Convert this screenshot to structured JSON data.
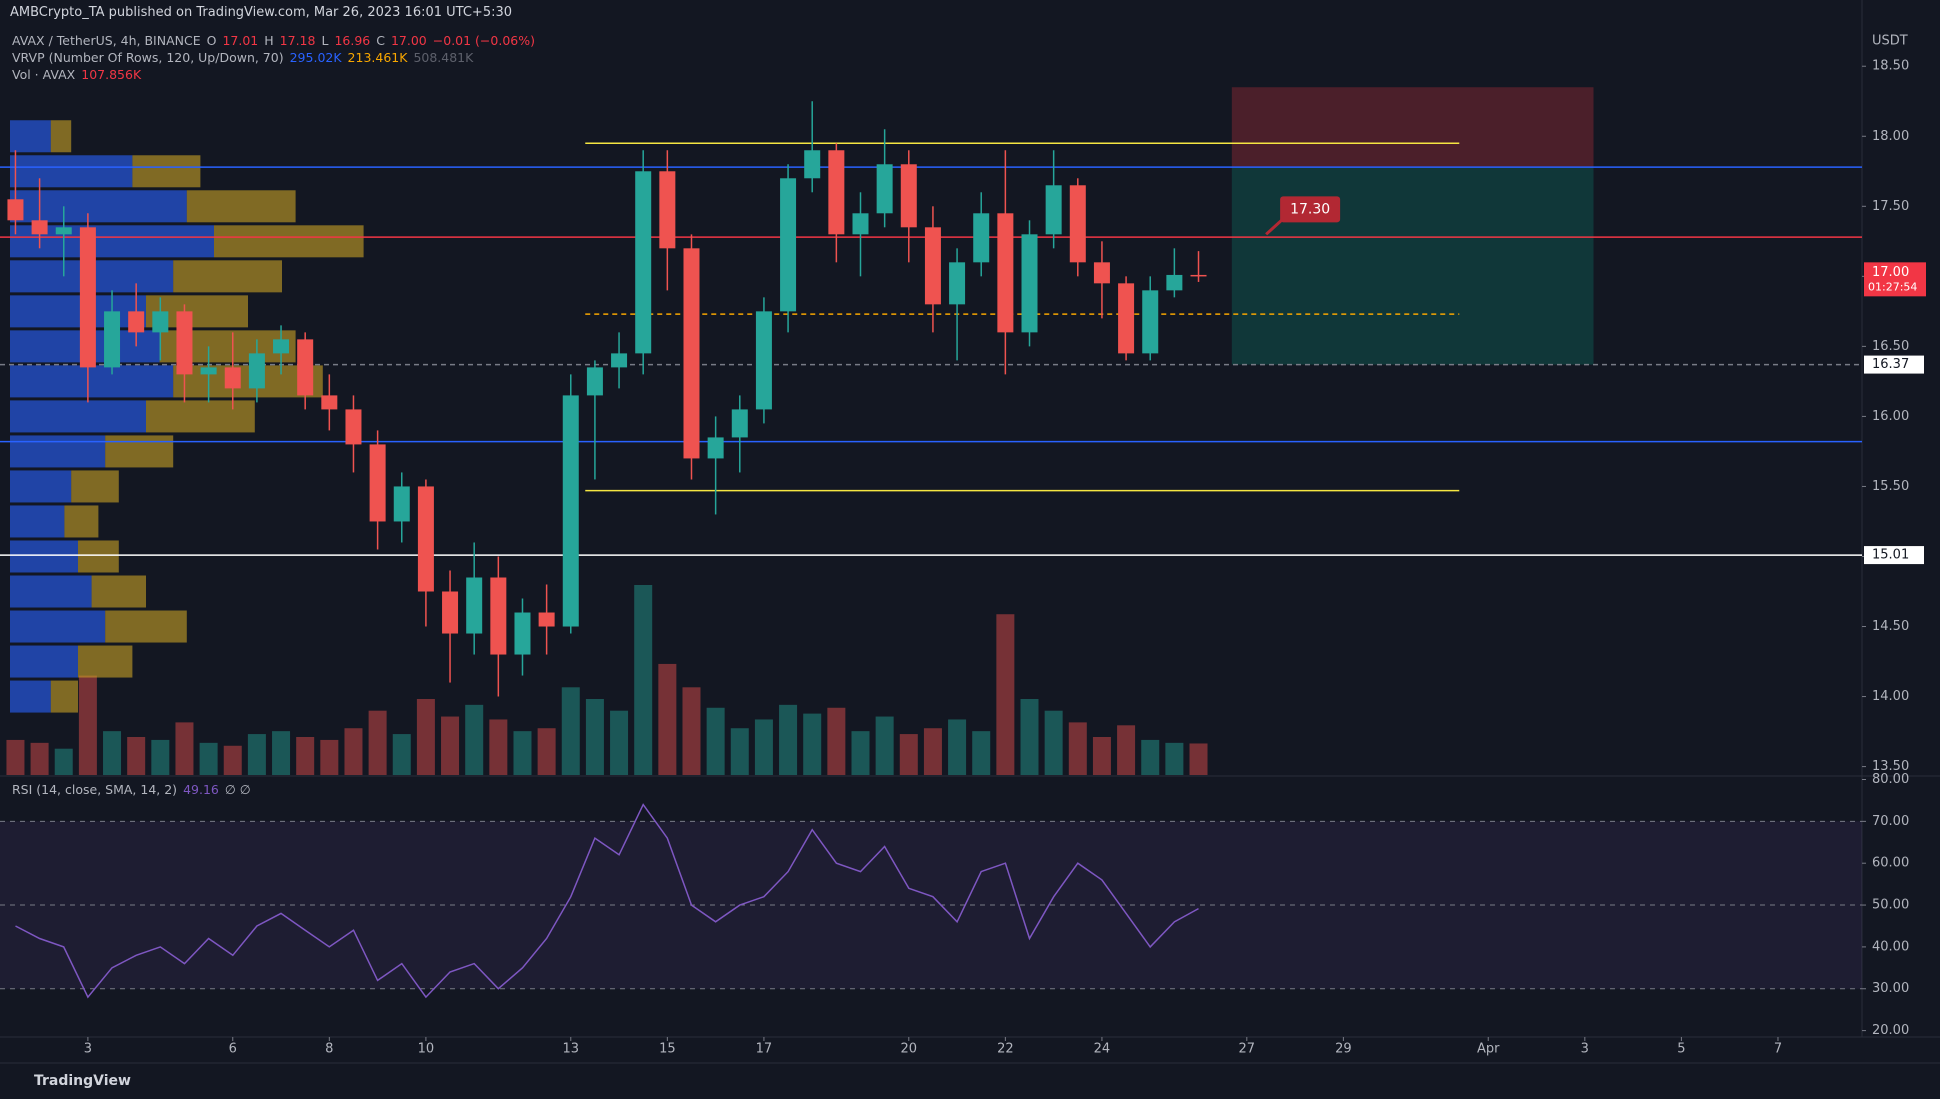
{
  "page": {
    "header": "AMBCrypto_TA published on TradingView.com, Mar 26, 2023 16:01 UTC+5:30",
    "brand": "TradingView"
  },
  "chart_data": {
    "type": "candlestick",
    "currency": "USDT",
    "legend": [
      [
        {
          "text": "AVAX / TetherUS, 4h, BINANCE",
          "color": "#b2b5be"
        },
        {
          "text": "O",
          "color": "#b2b5be"
        },
        {
          "text": "17.01",
          "color": "#f23645"
        },
        {
          "text": "H",
          "color": "#b2b5be"
        },
        {
          "text": "17.18",
          "color": "#f23645"
        },
        {
          "text": "L",
          "color": "#b2b5be"
        },
        {
          "text": "16.96",
          "color": "#f23645"
        },
        {
          "text": "C",
          "color": "#b2b5be"
        },
        {
          "text": "17.00",
          "color": "#f23645"
        },
        {
          "text": "−0.01 (−0.06%)",
          "color": "#f23645"
        }
      ],
      [
        {
          "text": "VRVP (Number Of Rows, 120, Up/Down, 70)",
          "color": "#b2b5be"
        },
        {
          "text": "295.02K",
          "color": "#2962ff"
        },
        {
          "text": "213.461K",
          "color": "#f7a600"
        },
        {
          "text": "508.481K",
          "color": "#5d606b"
        }
      ],
      [
        {
          "text": "Vol · AVAX",
          "color": "#b2b5be"
        },
        {
          "text": "107.856K",
          "color": "#f23645"
        }
      ]
    ],
    "up_color": "#26a69a",
    "down_color": "#ef5350",
    "x": [
      1.5,
      2,
      2.5,
      3,
      3.5,
      4,
      4.5,
      5,
      5.5,
      6,
      6.5,
      7,
      7.5,
      8,
      8.5,
      9,
      9.5,
      10,
      10.5,
      11,
      11.5,
      12,
      12.5,
      13,
      13.5,
      14,
      14.5,
      15,
      15.5,
      16,
      16.5,
      17,
      17.5,
      18,
      18.5,
      19,
      19.5,
      20,
      20.5,
      21,
      21.5,
      22,
      22.5,
      23,
      23.5,
      24,
      24.5,
      25,
      25.5,
      26
    ],
    "open": [
      17.55,
      17.4,
      17.3,
      17.35,
      16.35,
      16.75,
      16.6,
      16.75,
      16.3,
      16.35,
      16.2,
      16.45,
      16.55,
      16.15,
      16.05,
      15.8,
      15.25,
      15.5,
      14.75,
      14.45,
      14.85,
      14.3,
      14.6,
      14.5,
      16.15,
      16.35,
      16.45,
      17.75,
      17.2,
      15.7,
      15.85,
      16.05,
      16.75,
      17.7,
      17.9,
      17.3,
      17.45,
      17.8,
      17.35,
      16.8,
      17.1,
      17.45,
      16.6,
      17.3,
      17.65,
      17.1,
      16.95,
      16.45,
      16.9,
      17.01
    ],
    "high": [
      17.9,
      17.7,
      17.5,
      17.45,
      16.9,
      16.95,
      16.85,
      16.8,
      16.5,
      16.6,
      16.55,
      16.65,
      16.6,
      16.3,
      16.15,
      15.9,
      15.6,
      15.55,
      14.9,
      15.1,
      15.0,
      14.7,
      14.8,
      16.3,
      16.4,
      16.6,
      17.9,
      17.9,
      17.3,
      16.0,
      16.15,
      16.85,
      17.8,
      18.25,
      17.95,
      17.6,
      18.05,
      17.9,
      17.5,
      17.2,
      17.6,
      17.9,
      17.4,
      17.9,
      17.7,
      17.25,
      17.0,
      17.0,
      17.2,
      17.18
    ],
    "low": [
      17.3,
      17.2,
      17.0,
      16.1,
      16.3,
      16.5,
      16.4,
      16.1,
      16.1,
      16.05,
      16.1,
      16.3,
      16.05,
      15.9,
      15.6,
      15.05,
      15.1,
      14.5,
      14.1,
      14.3,
      14.0,
      14.15,
      14.3,
      14.45,
      15.55,
      16.2,
      16.3,
      16.9,
      15.55,
      15.3,
      15.6,
      15.95,
      16.6,
      17.6,
      17.1,
      17.0,
      17.35,
      17.1,
      16.6,
      16.4,
      17.0,
      16.3,
      16.5,
      17.2,
      17.0,
      16.7,
      16.4,
      16.4,
      16.85,
      16.96
    ],
    "close": [
      17.4,
      17.3,
      17.35,
      16.35,
      16.75,
      16.6,
      16.75,
      16.3,
      16.35,
      16.2,
      16.45,
      16.55,
      16.15,
      16.05,
      15.8,
      15.25,
      15.5,
      14.75,
      14.45,
      14.85,
      14.3,
      14.6,
      14.5,
      16.15,
      16.35,
      16.45,
      17.75,
      17.2,
      15.7,
      15.85,
      16.05,
      16.75,
      17.7,
      17.9,
      17.3,
      17.45,
      17.8,
      17.35,
      16.8,
      17.1,
      17.45,
      16.6,
      17.3,
      17.65,
      17.1,
      16.95,
      16.45,
      16.9,
      17.01,
      17.0
    ],
    "xlim": [
      1.18,
      39.74
    ],
    "ylim": [
      13.44,
      18.83
    ],
    "yticks": [
      {
        "value": 13.5,
        "label": "13.50"
      },
      {
        "value": 14,
        "label": "14.00"
      },
      {
        "value": 14.5,
        "label": "14.50"
      },
      {
        "value": 15,
        "label": "15.00"
      },
      {
        "value": 15.5,
        "label": "15.50"
      },
      {
        "value": 16,
        "label": "16.00"
      },
      {
        "value": 16.5,
        "label": "16.50"
      },
      {
        "value": 17,
        "label": "17.00"
      },
      {
        "value": 17.5,
        "label": "17.50"
      },
      {
        "value": 18,
        "label": "18.00"
      },
      {
        "value": 18.5,
        "label": "18.50"
      }
    ],
    "xticks": [
      3,
      6,
      8,
      10,
      13,
      15,
      17,
      20,
      22,
      24,
      27,
      29,
      {
        "value": 32,
        "label": "Apr"
      },
      {
        "value": 34,
        "label": "3"
      },
      {
        "value": 36,
        "label": "5"
      },
      {
        "value": 38,
        "label": "7"
      }
    ],
    "volume": {
      "values": [
        120,
        110,
        90,
        340,
        150,
        130,
        120,
        180,
        110,
        100,
        140,
        150,
        130,
        120,
        160,
        220,
        140,
        260,
        200,
        240,
        190,
        150,
        160,
        300,
        260,
        220,
        650,
        380,
        300,
        230,
        160,
        190,
        240,
        210,
        230,
        150,
        200,
        140,
        160,
        190,
        150,
        550,
        260,
        220,
        180,
        130,
        170,
        120,
        110,
        107.856
      ]
    },
    "volume_profile": {
      "price": [
        14,
        14.25,
        14.5,
        14.75,
        15,
        15.25,
        15.5,
        15.75,
        16,
        16.25,
        16.5,
        16.75,
        17,
        17.25,
        17.5,
        17.75,
        18
      ],
      "up": [
        6,
        10,
        14,
        12,
        10,
        8,
        9,
        14,
        20,
        24,
        22,
        20,
        24,
        30,
        26,
        18,
        6
      ],
      "down": [
        4,
        8,
        12,
        8,
        6,
        5,
        7,
        10,
        16,
        22,
        20,
        15,
        16,
        22,
        16,
        10,
        3
      ],
      "up_color": "#2962ff",
      "down_color": "#c9a227"
    },
    "levels": [
      {
        "value": 17.95,
        "color": "#f5e642",
        "x": [
          13.3,
          31.4
        ]
      },
      {
        "value": 15.47,
        "color": "#f5e642",
        "x": [
          13.3,
          31.4
        ]
      },
      {
        "value": 17.78,
        "color": "#2962ff"
      },
      {
        "value": 15.82,
        "color": "#2962ff"
      },
      {
        "value": 17.28,
        "color": "#f23645"
      },
      {
        "value": 16.73,
        "color": "#f7a600",
        "x": [
          13.3,
          31.4
        ],
        "dash": true
      },
      {
        "value": 16.37,
        "color": "#787b86",
        "dash": true,
        "tag": true
      },
      {
        "value": 15.01,
        "color": "#ffffff",
        "tag": true
      }
    ],
    "position": {
      "x": [
        26.69,
        34.18
      ],
      "stop": 18.35,
      "entry": 17.78,
      "target": 16.37
    },
    "annotation": {
      "x": 27.4,
      "value": 17.3,
      "label": "17.30"
    },
    "last_price": {
      "value": 17,
      "label": "17.00",
      "countdown": "01:27:54"
    },
    "rsi": {
      "legend": [
        {
          "text": "RSI (14, close, SMA, 14, 2)",
          "color": "#b2b5be"
        },
        {
          "text": "49.16",
          "color": "#7e57c2"
        },
        {
          "text": "∅ ∅",
          "color": "#b2b5be"
        }
      ],
      "color": "#7e57c2",
      "values": [
        45,
        42,
        40,
        28,
        35,
        38,
        40,
        36,
        42,
        38,
        45,
        48,
        44,
        40,
        44,
        32,
        36,
        28,
        34,
        36,
        30,
        35,
        42,
        52,
        66,
        62,
        74,
        66,
        50,
        46,
        50,
        52,
        58,
        68,
        60,
        58,
        64,
        54,
        52,
        46,
        58,
        60,
        42,
        52,
        60,
        56,
        48,
        40,
        46,
        49.16
      ],
      "ylim": [
        18.47,
        80.6
      ],
      "yticks": [
        {
          "value": 20,
          "label": "20.00"
        },
        {
          "value": 30,
          "label": "30.00"
        },
        {
          "value": 40,
          "label": "40.00"
        },
        {
          "value": 50,
          "label": "50.00"
        },
        {
          "value": 60,
          "label": "60.00"
        },
        {
          "value": 70,
          "label": "70.00"
        },
        {
          "value": 80,
          "label": "80.00"
        }
      ],
      "bands": [
        70,
        50,
        30
      ]
    }
  }
}
